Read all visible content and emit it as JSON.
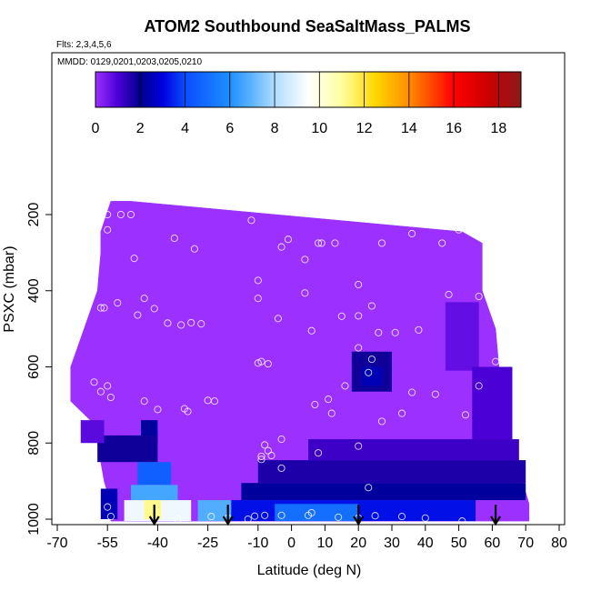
{
  "chart_data": {
    "type": "heatmap",
    "title": "ATOM2 Southbound SeaSaltMass_PALMS",
    "flights_note": "Flts: 2,3,4,5,6",
    "dates_note": "MMDD: 0129,0201,0203,0205,0210",
    "xlabel": "Latitude (deg N)",
    "ylabel": "PSXC (mbar)",
    "xlim": [
      -70,
      80
    ],
    "ylim": [
      1000,
      100
    ],
    "x_ticks": [
      -70,
      -55,
      -40,
      -25,
      -10,
      0,
      10,
      20,
      30,
      40,
      50,
      60,
      70,
      80
    ],
    "x_tick_labels": [
      "-70",
      "-55",
      "-40",
      "-25",
      "-10",
      "0",
      "10",
      "20",
      "30",
      "40",
      "50",
      "60",
      "70",
      "80"
    ],
    "y_ticks": [
      200,
      400,
      600,
      800,
      1000
    ],
    "y_tick_labels": [
      "200",
      "400",
      "600",
      "800",
      "1000"
    ],
    "colorbar": {
      "min": 0,
      "max": 19,
      "ticks": [
        0,
        2,
        4,
        6,
        8,
        10,
        12,
        14,
        16,
        18
      ],
      "tick_labels": [
        "0",
        "2",
        "4",
        "6",
        "8",
        "10",
        "12",
        "14",
        "16",
        "18"
      ],
      "stops": [
        {
          "v": 0,
          "c": "#9b30ff"
        },
        {
          "v": 1,
          "c": "#4b00d6"
        },
        {
          "v": 2,
          "c": "#00008b"
        },
        {
          "v": 3,
          "c": "#0000e0"
        },
        {
          "v": 4,
          "c": "#0a4cff"
        },
        {
          "v": 6,
          "c": "#1e90ff"
        },
        {
          "v": 7,
          "c": "#5fb4ff"
        },
        {
          "v": 8,
          "c": "#b0dcff"
        },
        {
          "v": 9.5,
          "c": "#ffffff"
        },
        {
          "v": 11,
          "c": "#ffffa0"
        },
        {
          "v": 12.5,
          "c": "#ffd700"
        },
        {
          "v": 14,
          "c": "#ff8c00"
        },
        {
          "v": 16,
          "c": "#ff0000"
        },
        {
          "v": 17.5,
          "c": "#cc0000"
        },
        {
          "v": 19,
          "c": "#8b1a1a"
        }
      ]
    },
    "base_value": 0,
    "coverage": [
      {
        "p": 165,
        "lat": [
          -54,
          -48
        ]
      },
      {
        "p": 245,
        "lat": [
          -57,
          51
        ]
      },
      {
        "p": 275,
        "lat": [
          -57,
          57
        ]
      },
      {
        "p": 300,
        "lat": [
          -57,
          57
        ]
      },
      {
        "p": 400,
        "lat": [
          -58,
          57
        ]
      },
      {
        "p": 500,
        "lat": [
          -62,
          61
        ]
      },
      {
        "p": 600,
        "lat": [
          -66,
          62
        ]
      },
      {
        "p": 690,
        "lat": [
          -66,
          64
        ]
      },
      {
        "p": 750,
        "lat": [
          -59,
          65
        ]
      },
      {
        "p": 800,
        "lat": [
          -58,
          66
        ]
      },
      {
        "p": 850,
        "lat": [
          -57,
          68
        ]
      },
      {
        "p": 900,
        "lat": [
          -56,
          69
        ]
      },
      {
        "p": 960,
        "lat": [
          -54,
          71
        ]
      },
      {
        "p": 1005,
        "lat": [
          -54,
          71
        ]
      }
    ],
    "features": [
      {
        "lat0": -45,
        "lat1": -40,
        "p0": 740,
        "p1": 795,
        "value": 2.2
      },
      {
        "lat0": -58,
        "lat1": -40,
        "p0": 780,
        "p1": 850,
        "value": 1.8
      },
      {
        "lat0": -46,
        "lat1": -36,
        "p0": 850,
        "p1": 910,
        "value": 4.6
      },
      {
        "lat0": -48,
        "lat1": -34,
        "p0": 910,
        "p1": 950,
        "value": 6.6
      },
      {
        "lat0": -50,
        "lat1": -30,
        "p0": 950,
        "p1": 1005,
        "value": 9.2
      },
      {
        "lat0": -44,
        "lat1": -39,
        "p0": 950,
        "p1": 1000,
        "value": 11.2
      },
      {
        "lat0": -28,
        "lat1": -18,
        "p0": 950,
        "p1": 1005,
        "value": 6.8
      },
      {
        "lat0": -18,
        "lat1": 55,
        "p0": 950,
        "p1": 1005,
        "value": 3.2
      },
      {
        "lat0": -5,
        "lat1": 20,
        "p0": 960,
        "p1": 1005,
        "value": 5.0
      },
      {
        "lat0": -15,
        "lat1": 70,
        "p0": 905,
        "p1": 950,
        "value": 2.2
      },
      {
        "lat0": -10,
        "lat1": 70,
        "p0": 845,
        "p1": 905,
        "value": 1.6
      },
      {
        "lat0": 5,
        "lat1": 68,
        "p0": 790,
        "p1": 845,
        "value": 1.2
      },
      {
        "lat0": 18,
        "lat1": 30,
        "p0": 560,
        "p1": 665,
        "value": 1.8
      },
      {
        "lat0": 21,
        "lat1": 27,
        "p0": 600,
        "p1": 650,
        "value": 2.5
      },
      {
        "lat0": 46,
        "lat1": 56,
        "p0": 430,
        "p1": 610,
        "value": 0.7
      },
      {
        "lat0": 54,
        "lat1": 66,
        "p0": 600,
        "p1": 790,
        "value": 1.0
      },
      {
        "lat0": -57,
        "lat1": -52,
        "p0": 920,
        "p1": 1000,
        "value": 2.5
      },
      {
        "lat0": -63,
        "lat1": -56,
        "p0": 740,
        "p1": 800,
        "value": 0.8
      }
    ],
    "sample_points": [
      [
        -55,
        200
      ],
      [
        -51,
        200
      ],
      [
        -48,
        200
      ],
      [
        -12,
        215
      ],
      [
        -55,
        240
      ],
      [
        -1,
        265
      ],
      [
        -3,
        285
      ],
      [
        8,
        275
      ],
      [
        9,
        275
      ],
      [
        13,
        275
      ],
      [
        27,
        275
      ],
      [
        36,
        250
      ],
      [
        45,
        275
      ],
      [
        50,
        240
      ],
      [
        -35,
        262
      ],
      [
        -29,
        290
      ],
      [
        -47,
        315
      ],
      [
        4,
        318
      ],
      [
        -10,
        373
      ],
      [
        -10,
        420
      ],
      [
        4,
        406
      ],
      [
        20,
        384
      ],
      [
        -44,
        420
      ],
      [
        -46,
        464
      ],
      [
        -52,
        432
      ],
      [
        -57,
        445
      ],
      [
        -56,
        445
      ],
      [
        -41,
        447
      ],
      [
        -37,
        485
      ],
      [
        -33,
        490
      ],
      [
        -30,
        484
      ],
      [
        -27,
        487
      ],
      [
        -4,
        473
      ],
      [
        6,
        505
      ],
      [
        15,
        467
      ],
      [
        24,
        440
      ],
      [
        47,
        410
      ],
      [
        56,
        415
      ],
      [
        20,
        466
      ],
      [
        20,
        550
      ],
      [
        26,
        510
      ],
      [
        31,
        510
      ],
      [
        38,
        503
      ],
      [
        -59,
        640
      ],
      [
        -70,
        640
      ],
      [
        -55,
        650
      ],
      [
        -57,
        665
      ],
      [
        -54,
        680
      ],
      [
        -44,
        690
      ],
      [
        -40,
        712
      ],
      [
        -32,
        710
      ],
      [
        -31,
        717
      ],
      [
        -25,
        688
      ],
      [
        -23,
        690
      ],
      [
        -10,
        590
      ],
      [
        -9,
        586
      ],
      [
        -7,
        592
      ],
      [
        7,
        699
      ],
      [
        11,
        685
      ],
      [
        12,
        722
      ],
      [
        16,
        650
      ],
      [
        23,
        615
      ],
      [
        24,
        580
      ],
      [
        27,
        743
      ],
      [
        33,
        722
      ],
      [
        36,
        667
      ],
      [
        43,
        672
      ],
      [
        52,
        726
      ],
      [
        56,
        650
      ],
      [
        61,
        586
      ],
      [
        -8,
        805
      ],
      [
        -7,
        820
      ],
      [
        -9,
        835
      ],
      [
        -9,
        843
      ],
      [
        -6,
        833
      ],
      [
        -3,
        790
      ],
      [
        -3,
        866
      ],
      [
        8,
        826
      ],
      [
        20,
        808
      ],
      [
        23,
        917
      ],
      [
        -55,
        968
      ],
      [
        -54,
        993
      ],
      [
        -34,
        1000
      ],
      [
        -24,
        993
      ],
      [
        -19,
        997
      ],
      [
        -13,
        1000
      ],
      [
        -11,
        992
      ],
      [
        -8,
        990
      ],
      [
        -3,
        990
      ],
      [
        5,
        990
      ],
      [
        6,
        983
      ],
      [
        14,
        995
      ],
      [
        20,
        997
      ],
      [
        25,
        991
      ],
      [
        33,
        993
      ],
      [
        40,
        997
      ],
      [
        51,
        1005
      ],
      [
        72,
        937
      ]
    ],
    "arrows_lat": [
      -41,
      -19,
      20,
      61
    ]
  }
}
